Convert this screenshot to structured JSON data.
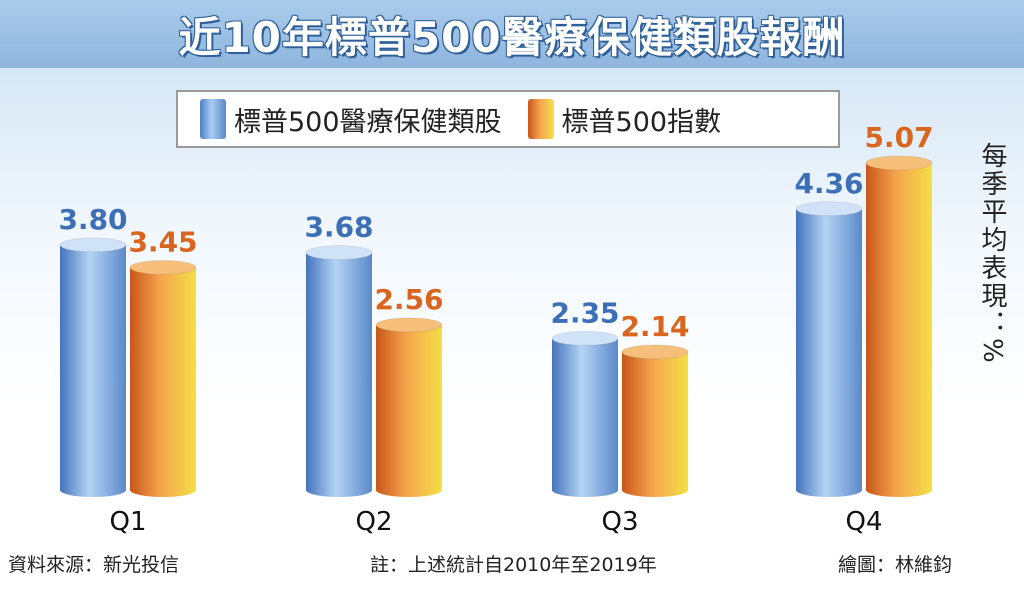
{
  "header": {
    "title": "近10年標普500醫療保健類股報酬"
  },
  "legend": [
    {
      "label": "標普500醫療保健類股",
      "color": "#6f9fdc"
    },
    {
      "label": "標普500指數",
      "color": "#e07a2a"
    }
  ],
  "y_axis_label": "每季平均表現：%",
  "footer": {
    "source": "資料來源：新光投信",
    "note": "註：上述統計自2010年至2019年",
    "credit": "繪圖：林維鈞"
  },
  "chart_data": {
    "type": "bar",
    "categories": [
      "Q1",
      "Q2",
      "Q3",
      "Q4"
    ],
    "series": [
      {
        "name": "標普500醫療保健類股",
        "values": [
          3.8,
          3.68,
          2.35,
          4.36
        ],
        "color": "#3d6fb6"
      },
      {
        "name": "標普500指數",
        "values": [
          3.45,
          2.56,
          2.14,
          5.07
        ],
        "color": "#d9651f"
      }
    ],
    "value_labels": [
      [
        "3.80",
        "3.68",
        "2.35",
        "4.36"
      ],
      [
        "3.45",
        "2.56",
        "2.14",
        "5.07"
      ]
    ],
    "ylabel": "每季平均表現：%",
    "ylim": [
      0,
      5.5
    ],
    "grid": false,
    "legend_position": "top"
  }
}
